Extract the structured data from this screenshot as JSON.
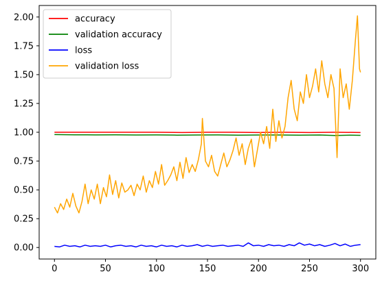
{
  "chart_data": {
    "type": "line",
    "title": "",
    "xlabel": "",
    "ylabel": "",
    "xlim": [
      -15,
      315
    ],
    "ylim": [
      -0.1,
      2.1
    ],
    "x_ticks": [
      0,
      50,
      100,
      150,
      200,
      250,
      300
    ],
    "y_ticks": [
      0.0,
      0.25,
      0.5,
      0.75,
      1.0,
      1.25,
      1.5,
      1.75,
      2.0
    ],
    "x_tick_labels": [
      "0",
      "50",
      "100",
      "150",
      "200",
      "250",
      "300"
    ],
    "y_tick_labels": [
      "0.00",
      "0.25",
      "0.50",
      "0.75",
      "1.00",
      "1.25",
      "1.50",
      "1.75",
      "2.00"
    ],
    "grid": false,
    "legend_position": "top-left",
    "series": [
      {
        "name": "accuracy",
        "color": "#ff0000",
        "points": [
          [
            0,
            1.0
          ],
          [
            25,
            1.0
          ],
          [
            50,
            1.0
          ],
          [
            75,
            1.0
          ],
          [
            100,
            1.0
          ],
          [
            125,
            0.998
          ],
          [
            150,
            1.0
          ],
          [
            175,
            1.0
          ],
          [
            200,
            0.998
          ],
          [
            225,
            1.0
          ],
          [
            250,
            0.998
          ],
          [
            275,
            1.0
          ],
          [
            300,
            0.998
          ]
        ]
      },
      {
        "name": "validation accuracy",
        "color": "#008000",
        "points": [
          [
            0,
            0.98
          ],
          [
            20,
            0.978
          ],
          [
            40,
            0.977
          ],
          [
            60,
            0.978
          ],
          [
            80,
            0.976
          ],
          [
            100,
            0.977
          ],
          [
            120,
            0.975
          ],
          [
            140,
            0.976
          ],
          [
            160,
            0.977
          ],
          [
            180,
            0.975
          ],
          [
            200,
            0.976
          ],
          [
            220,
            0.976
          ],
          [
            240,
            0.975
          ],
          [
            260,
            0.976
          ],
          [
            275,
            0.972
          ],
          [
            290,
            0.975
          ],
          [
            300,
            0.973
          ]
        ]
      },
      {
        "name": "loss",
        "color": "#0000ff",
        "points": [
          [
            0,
            0.01
          ],
          [
            5,
            0.005
          ],
          [
            10,
            0.02
          ],
          [
            15,
            0.01
          ],
          [
            20,
            0.015
          ],
          [
            25,
            0.005
          ],
          [
            30,
            0.02
          ],
          [
            35,
            0.01
          ],
          [
            40,
            0.015
          ],
          [
            45,
            0.01
          ],
          [
            50,
            0.02
          ],
          [
            55,
            0.005
          ],
          [
            60,
            0.015
          ],
          [
            65,
            0.02
          ],
          [
            70,
            0.01
          ],
          [
            75,
            0.015
          ],
          [
            80,
            0.005
          ],
          [
            85,
            0.02
          ],
          [
            90,
            0.01
          ],
          [
            95,
            0.015
          ],
          [
            100,
            0.005
          ],
          [
            105,
            0.02
          ],
          [
            110,
            0.01
          ],
          [
            115,
            0.015
          ],
          [
            120,
            0.005
          ],
          [
            125,
            0.02
          ],
          [
            130,
            0.01
          ],
          [
            135,
            0.015
          ],
          [
            140,
            0.025
          ],
          [
            145,
            0.01
          ],
          [
            150,
            0.02
          ],
          [
            155,
            0.01
          ],
          [
            160,
            0.015
          ],
          [
            165,
            0.02
          ],
          [
            170,
            0.01
          ],
          [
            175,
            0.015
          ],
          [
            180,
            0.02
          ],
          [
            185,
            0.01
          ],
          [
            190,
            0.04
          ],
          [
            195,
            0.015
          ],
          [
            200,
            0.02
          ],
          [
            205,
            0.01
          ],
          [
            210,
            0.025
          ],
          [
            215,
            0.015
          ],
          [
            220,
            0.02
          ],
          [
            225,
            0.01
          ],
          [
            230,
            0.025
          ],
          [
            235,
            0.015
          ],
          [
            240,
            0.04
          ],
          [
            245,
            0.02
          ],
          [
            250,
            0.03
          ],
          [
            255,
            0.015
          ],
          [
            260,
            0.025
          ],
          [
            265,
            0.01
          ],
          [
            270,
            0.02
          ],
          [
            275,
            0.035
          ],
          [
            280,
            0.015
          ],
          [
            285,
            0.03
          ],
          [
            290,
            0.01
          ],
          [
            295,
            0.02
          ],
          [
            300,
            0.025
          ]
        ]
      },
      {
        "name": "validation loss",
        "color": "#ffa500",
        "points": [
          [
            0,
            0.35
          ],
          [
            3,
            0.3
          ],
          [
            6,
            0.38
          ],
          [
            9,
            0.33
          ],
          [
            12,
            0.42
          ],
          [
            15,
            0.35
          ],
          [
            18,
            0.47
          ],
          [
            21,
            0.36
          ],
          [
            24,
            0.3
          ],
          [
            27,
            0.4
          ],
          [
            30,
            0.55
          ],
          [
            33,
            0.38
          ],
          [
            36,
            0.5
          ],
          [
            39,
            0.42
          ],
          [
            42,
            0.55
          ],
          [
            45,
            0.38
          ],
          [
            48,
            0.52
          ],
          [
            51,
            0.44
          ],
          [
            54,
            0.63
          ],
          [
            57,
            0.46
          ],
          [
            60,
            0.58
          ],
          [
            63,
            0.43
          ],
          [
            66,
            0.56
          ],
          [
            69,
            0.48
          ],
          [
            72,
            0.5
          ],
          [
            75,
            0.54
          ],
          [
            78,
            0.45
          ],
          [
            81,
            0.55
          ],
          [
            84,
            0.5
          ],
          [
            87,
            0.62
          ],
          [
            90,
            0.48
          ],
          [
            93,
            0.58
          ],
          [
            96,
            0.52
          ],
          [
            99,
            0.66
          ],
          [
            102,
            0.55
          ],
          [
            105,
            0.72
          ],
          [
            108,
            0.54
          ],
          [
            111,
            0.58
          ],
          [
            114,
            0.63
          ],
          [
            117,
            0.7
          ],
          [
            120,
            0.58
          ],
          [
            123,
            0.74
          ],
          [
            126,
            0.6
          ],
          [
            129,
            0.78
          ],
          [
            132,
            0.65
          ],
          [
            135,
            0.72
          ],
          [
            138,
            0.66
          ],
          [
            141,
            0.76
          ],
          [
            144,
            0.9
          ],
          [
            145,
            1.12
          ],
          [
            148,
            0.75
          ],
          [
            151,
            0.7
          ],
          [
            154,
            0.8
          ],
          [
            157,
            0.66
          ],
          [
            160,
            0.62
          ],
          [
            163,
            0.72
          ],
          [
            166,
            0.82
          ],
          [
            169,
            0.7
          ],
          [
            172,
            0.76
          ],
          [
            175,
            0.84
          ],
          [
            178,
            0.95
          ],
          [
            181,
            0.8
          ],
          [
            184,
            0.9
          ],
          [
            187,
            0.72
          ],
          [
            190,
            0.86
          ],
          [
            193,
            0.94
          ],
          [
            196,
            0.7
          ],
          [
            199,
            0.85
          ],
          [
            202,
            1.0
          ],
          [
            205,
            0.9
          ],
          [
            208,
            1.05
          ],
          [
            211,
            0.86
          ],
          [
            214,
            1.2
          ],
          [
            217,
            0.92
          ],
          [
            220,
            1.1
          ],
          [
            223,
            0.95
          ],
          [
            226,
            1.05
          ],
          [
            229,
            1.3
          ],
          [
            232,
            1.45
          ],
          [
            235,
            1.2
          ],
          [
            238,
            1.1
          ],
          [
            241,
            1.35
          ],
          [
            244,
            1.25
          ],
          [
            247,
            1.5
          ],
          [
            250,
            1.3
          ],
          [
            253,
            1.4
          ],
          [
            256,
            1.55
          ],
          [
            259,
            1.35
          ],
          [
            262,
            1.62
          ],
          [
            265,
            1.42
          ],
          [
            268,
            1.3
          ],
          [
            271,
            1.5
          ],
          [
            274,
            1.38
          ],
          [
            277,
            0.78
          ],
          [
            280,
            1.55
          ],
          [
            283,
            1.3
          ],
          [
            286,
            1.42
          ],
          [
            289,
            1.2
          ],
          [
            292,
            1.45
          ],
          [
            295,
            1.8
          ],
          [
            297,
            2.01
          ],
          [
            299,
            1.55
          ],
          [
            300,
            1.52
          ]
        ]
      }
    ]
  }
}
